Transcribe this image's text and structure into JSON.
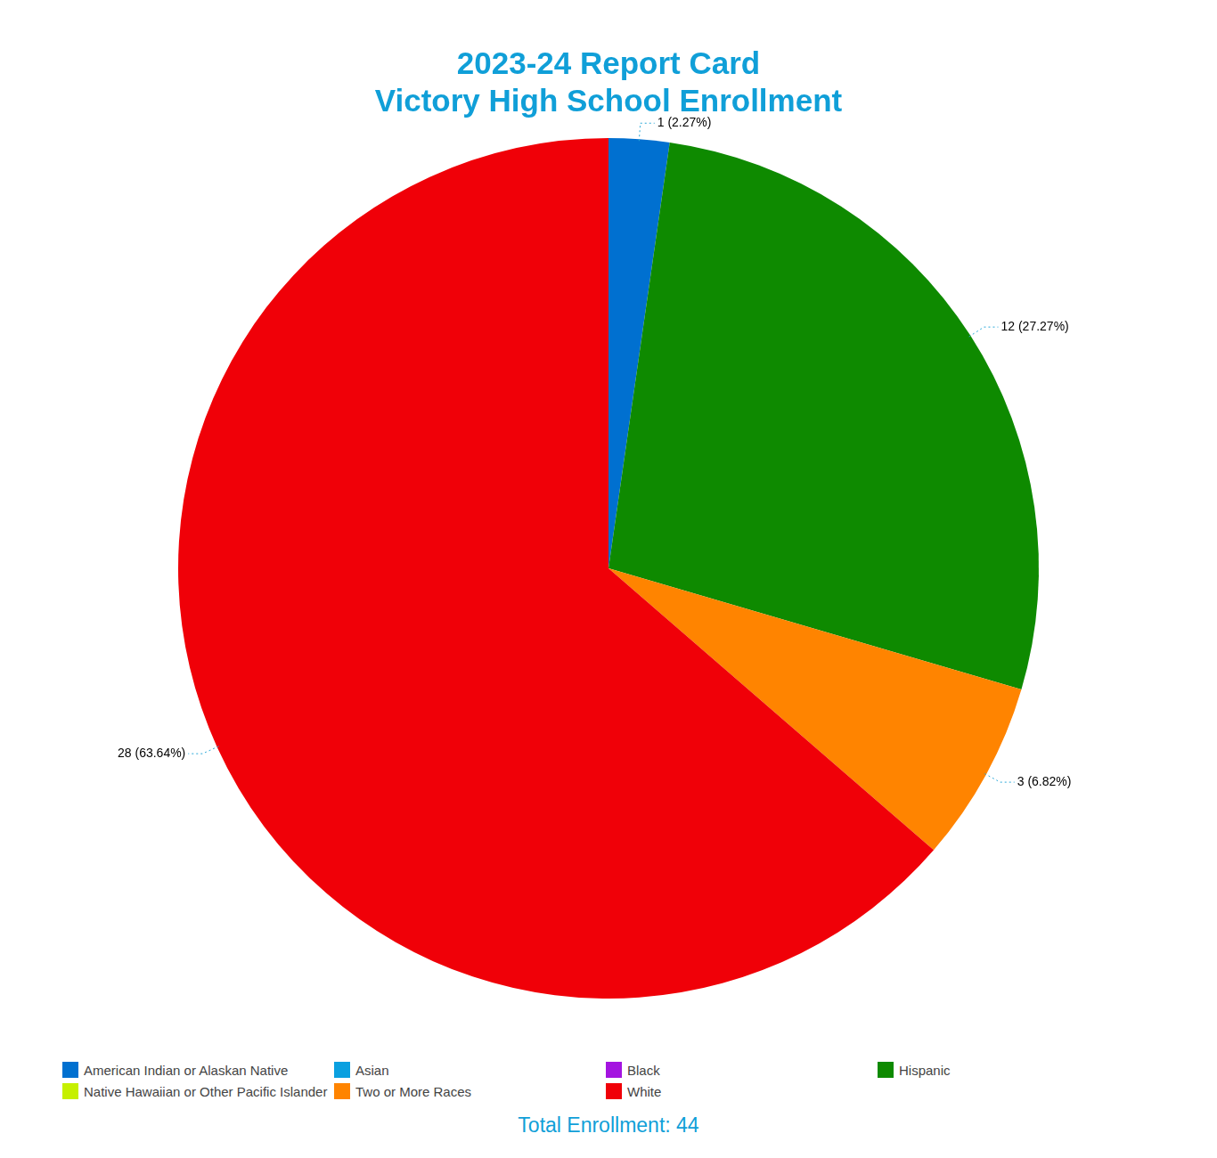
{
  "chart_data": {
    "type": "pie",
    "title": [
      "2023-24 Report Card",
      "Victory High School Enrollment"
    ],
    "categories": [
      "American Indian or Alaskan Native",
      "Asian",
      "Black",
      "Hispanic",
      "Native Hawaiian or Other Pacific Islander",
      "Two or More Races",
      "White"
    ],
    "values": [
      1,
      0,
      0,
      12,
      0,
      3,
      28
    ],
    "value_labels": [
      "1 (2.27%)",
      null,
      null,
      "12 (27.27%)",
      null,
      "3 (6.82%)",
      "28 (63.64%)"
    ],
    "colors": [
      "#0070d0",
      "#0aa0e0",
      "#a414e0",
      "#0e8a00",
      "#c6f000",
      "#ff8400",
      "#f00008"
    ],
    "data_labels": true,
    "legend": "bottom",
    "footer": "Total Enrollment: 44"
  }
}
